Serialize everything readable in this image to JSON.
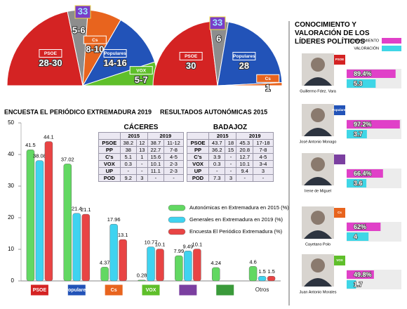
{
  "chart_data": [
    {
      "type": "hemicycle",
      "title": "ENCUESTA EL PERIÓDICO EXTREMADURA 2019",
      "categories": [
        "PSOE",
        null,
        "Cs",
        "Populares",
        "VOX"
      ],
      "values_low": [
        28,
        5,
        8,
        14,
        5
      ],
      "values_high": [
        30,
        6,
        10,
        16,
        7
      ],
      "value_labels": [
        "28-30",
        "5-6",
        "8-10",
        "14-16",
        "5-7"
      ],
      "colors": [
        "#d42323",
        "#8d8d8d",
        "#e8641e",
        "#2253b8",
        "#5fbf2a"
      ],
      "majority": 33
    },
    {
      "type": "hemicycle",
      "title": "RESULTADOS AUTONÓMICAS 2015",
      "categories": [
        "PSOE",
        null,
        "Populares",
        "Cs"
      ],
      "values": [
        30,
        6,
        28,
        1
      ],
      "colors": [
        "#d42323",
        "#8d8d8d",
        "#2253b8",
        "#e8641e"
      ],
      "majority": 33
    },
    {
      "type": "bar",
      "categories": [
        "PSOE",
        "Populares",
        "Cs",
        "VOX",
        null,
        null,
        "Otros"
      ],
      "category_colors": [
        "#d42323",
        "#2253b8",
        "#e8641e",
        "#5fbf2a",
        "#7b3fa0",
        "#3a9a3a",
        null
      ],
      "series": [
        {
          "name": "Autonómicas en Extremadura en 2015 (%)",
          "color": "#62d862",
          "values": [
            41.5,
            37.02,
            4.37,
            0.28,
            7.99,
            4.24,
            4.6
          ]
        },
        {
          "name": "Generales en Extremadura en 2019 (%)",
          "color": "#3fd3f0",
          "values": [
            38.08,
            21.4,
            17.96,
            10.77,
            9.49,
            null,
            1.5
          ]
        },
        {
          "name": "Encuesta El Periódico Extremadura (%)",
          "color": "#e84444",
          "values": [
            44.1,
            21.1,
            13.1,
            10.1,
            10.1,
            null,
            1.5
          ]
        }
      ],
      "ylim": [
        0,
        50
      ],
      "yticks": [
        0,
        10,
        20,
        30,
        40,
        50
      ]
    },
    {
      "type": "hbar",
      "title": "CONOCIMIENTO Y VALORACIÓN DE LOS LÍDERES POLÍTICOS",
      "categories": [
        "Guillermo Fdez. Vara",
        "José Antonio Monago",
        "Irene de Miguel",
        "Cayetano Polo",
        "Juan Antonio Morales"
      ],
      "parties": [
        "PSOE",
        "Populares",
        null,
        "Cs",
        "VOX"
      ],
      "party_colors": [
        "#d42323",
        "#2253b8",
        "#7b3fa0",
        "#e8641e",
        "#5fbf2a"
      ],
      "series": [
        {
          "name": "CONOCIMIENTO",
          "color": "#e040c8",
          "values": [
            89.4,
            97.2,
            66.4,
            62,
            49.8
          ],
          "value_labels": [
            "89.4%",
            "97.2%",
            "66.4%",
            "62%",
            "49.8%"
          ],
          "xlim": [
            0,
            100
          ]
        },
        {
          "name": "VALORACIÓN",
          "color": "#3fd6e6",
          "values": [
            5.3,
            3.7,
            3.6,
            4,
            1.7
          ],
          "xlim": [
            0,
            10
          ]
        }
      ]
    }
  ],
  "tables": [
    {
      "title": "CÁCERES",
      "years": [
        "2015",
        "2019"
      ],
      "rows": [
        [
          "PSOE",
          "38.2",
          "12",
          "38.7",
          "11-12"
        ],
        [
          "PP",
          "38",
          "13",
          "22.7",
          "7-8"
        ],
        [
          "C's",
          "5.1",
          "1",
          "15.6",
          "4-5"
        ],
        [
          "VOX",
          "0.3",
          "-",
          "10.1",
          "2-3"
        ],
        [
          "UP",
          "-",
          "-",
          "11.1",
          "2-3"
        ],
        [
          "POD",
          "9.2",
          "3",
          "-",
          "-"
        ]
      ]
    },
    {
      "title": "BADAJOZ",
      "years": [
        "2015",
        "2019"
      ],
      "rows": [
        [
          "PSOE",
          "43.7",
          "18",
          "45.3",
          "17-18"
        ],
        [
          "PP",
          "36.2",
          "15",
          "20.8",
          "7-8"
        ],
        [
          "C's",
          "3.9",
          "-",
          "12.7",
          "4-5"
        ],
        [
          "VOX",
          "0.3",
          "-",
          "10.1",
          "3-4"
        ],
        [
          "UP",
          "-",
          "-",
          "9.4",
          "3"
        ],
        [
          "POD",
          "7.3",
          "3",
          "-",
          "-"
        ]
      ]
    }
  ]
}
